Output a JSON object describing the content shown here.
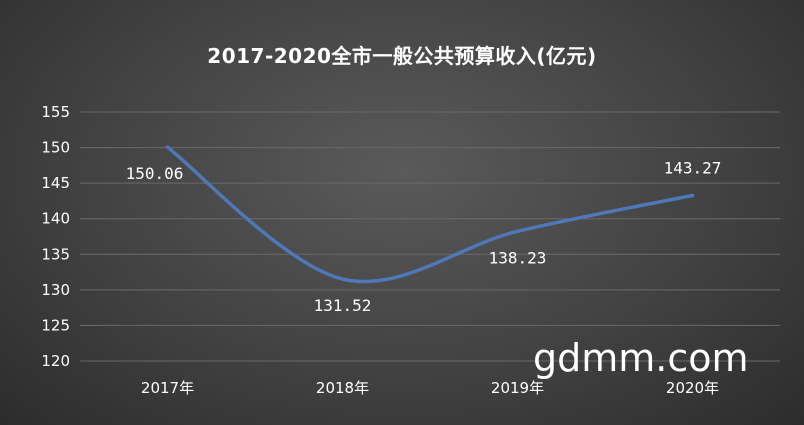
{
  "chart_data": {
    "type": "line",
    "title": "2017-2020全市一般公共预算收入(亿元)",
    "categories": [
      "2017年",
      "2018年",
      "2019年",
      "2020年"
    ],
    "values": [
      150.06,
      131.52,
      138.23,
      143.27
    ],
    "data_labels": [
      "150.06",
      "131.52",
      "138.23",
      "143.27"
    ],
    "ylim": [
      120,
      155
    ],
    "yticks": [
      120,
      125,
      130,
      135,
      140,
      145,
      150,
      155
    ],
    "grid": true,
    "smooth": true,
    "line_color": "#4e79b8"
  },
  "watermark": "gdmm.com"
}
